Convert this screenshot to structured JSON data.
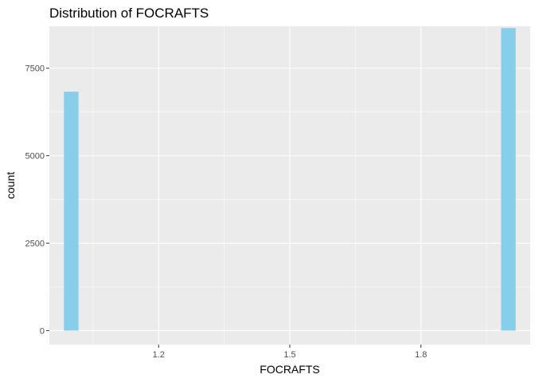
{
  "chart_data": {
    "type": "histogram",
    "title": "Distribution of FOCRAFTS",
    "xlabel": "FOCRAFTS",
    "ylabel": "count",
    "xlim": [
      0.95,
      2.05
    ],
    "ylim": [
      -400,
      8700
    ],
    "x_ticks": [
      1.2,
      1.5,
      1.8
    ],
    "x_tick_labels": [
      "1.2",
      "1.5",
      "1.8"
    ],
    "y_ticks": [
      0,
      2500,
      5000,
      7500
    ],
    "y_tick_labels": [
      "0",
      "2500",
      "5000",
      "7500"
    ],
    "bar_width": 0.0333,
    "bins": [
      {
        "center": 1.0,
        "count": 6830
      },
      {
        "center": 2.0,
        "count": 8650
      }
    ],
    "grid": true,
    "colors": {
      "panel": "#EBEBEB",
      "grid": "#FFFFFF",
      "bar": "#87CEEB",
      "tick": "#333333"
    }
  }
}
